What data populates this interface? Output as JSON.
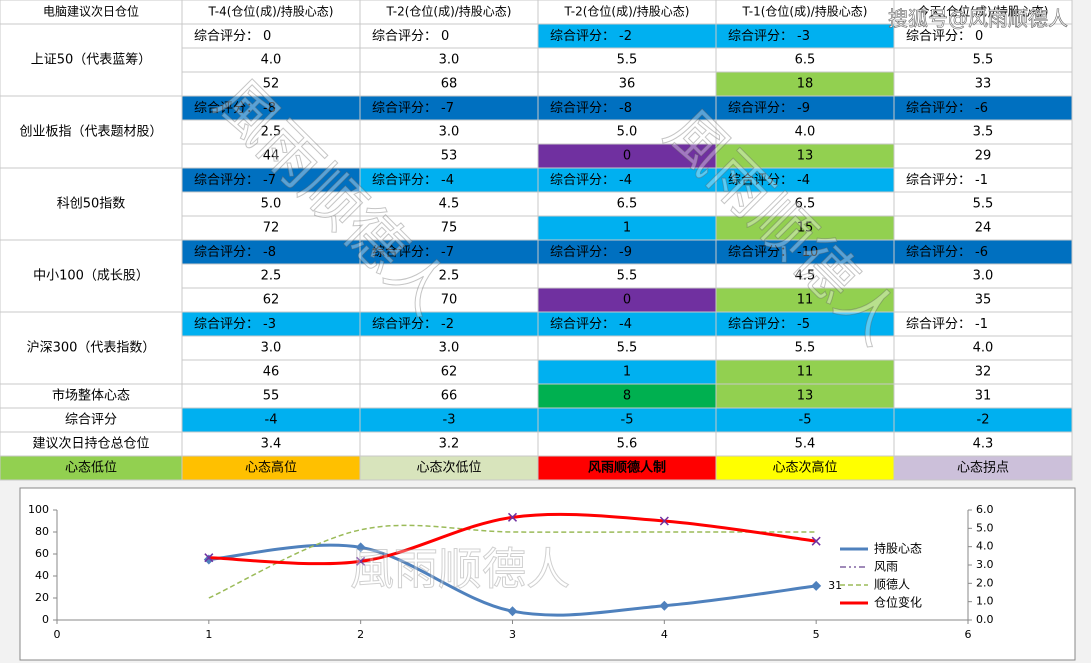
{
  "watermark_top": "搜狐号@风雨顺德人",
  "watermark": "風雨顺德人",
  "score_prefix": "综合评分：",
  "table": {
    "header": [
      "电脑建议次日仓位",
      "T-4(仓位(成)/持股心态)",
      "T-2(仓位(成)/持股心态)",
      "T-2(仓位(成)/持股心态)",
      "T-1(仓位(成)/持股心态)",
      "今天(仓位(成)/持股心态)"
    ],
    "groups": [
      {
        "name": "上证50（代表蓝筹）",
        "scores": [
          0,
          0,
          -2,
          -3,
          0
        ],
        "score_fills": [
          "#ffffff",
          "#ffffff",
          "#00b0f0",
          "#00b0f0",
          "#ffffff"
        ],
        "positions": [
          "4.0",
          "3.0",
          "5.5",
          "6.5",
          "5.5"
        ],
        "moods": [
          52,
          68,
          36,
          18,
          33
        ],
        "mood_fills": [
          "#ffffff",
          "#ffffff",
          "#ffffff",
          "#92d050",
          "#ffffff"
        ]
      },
      {
        "name": "创业板指（代表题材股）",
        "scores": [
          -8,
          -7,
          -8,
          -9,
          -6
        ],
        "score_fills": [
          "#0070c0",
          "#0070c0",
          "#0070c0",
          "#0070c0",
          "#0070c0"
        ],
        "positions": [
          "2.5",
          "3.0",
          "5.0",
          "4.0",
          "3.5"
        ],
        "moods": [
          44,
          53,
          0,
          13,
          29
        ],
        "mood_fills": [
          "#ffffff",
          "#ffffff",
          "#7030a0",
          "#92d050",
          "#ffffff"
        ]
      },
      {
        "name": "科创50指数",
        "scores": [
          -7,
          -4,
          -4,
          -4,
          -1
        ],
        "score_fills": [
          "#0070c0",
          "#00b0f0",
          "#00b0f0",
          "#00b0f0",
          "#ffffff"
        ],
        "positions": [
          "5.0",
          "4.5",
          "6.5",
          "6.5",
          "5.5"
        ],
        "moods": [
          72,
          75,
          1,
          15,
          24
        ],
        "mood_fills": [
          "#ffffff",
          "#ffffff",
          "#00b0f0",
          "#92d050",
          "#ffffff"
        ]
      },
      {
        "name": "中小100（成长股）",
        "scores": [
          -8,
          -7,
          -9,
          -10,
          -6
        ],
        "score_fills": [
          "#0070c0",
          "#0070c0",
          "#0070c0",
          "#0070c0",
          "#0070c0"
        ],
        "positions": [
          "2.5",
          "2.5",
          "5.5",
          "4.5",
          "3.0"
        ],
        "moods": [
          62,
          70,
          0,
          11,
          35
        ],
        "mood_fills": [
          "#ffffff",
          "#ffffff",
          "#7030a0",
          "#92d050",
          "#ffffff"
        ]
      },
      {
        "name": "沪深300（代表指数）",
        "scores": [
          -3,
          -2,
          -4,
          -5,
          -1
        ],
        "score_fills": [
          "#00b0f0",
          "#00b0f0",
          "#00b0f0",
          "#00b0f0",
          "#ffffff"
        ],
        "positions": [
          "3.0",
          "3.0",
          "5.5",
          "5.5",
          "4.0"
        ],
        "moods": [
          46,
          62,
          1,
          11,
          32
        ],
        "mood_fills": [
          "#ffffff",
          "#ffffff",
          "#00b0f0",
          "#92d050",
          "#ffffff"
        ]
      }
    ],
    "summary": [
      {
        "name": "市场整体心态",
        "values": [
          55,
          66,
          8,
          13,
          31
        ],
        "fills": [
          "#ffffff",
          "#ffffff",
          "#00b050",
          "#92d050",
          "#ffffff"
        ]
      },
      {
        "name": "综合评分",
        "values": [
          -4,
          -3,
          -5,
          -5,
          -2
        ],
        "fills": [
          "#00b0f0",
          "#00b0f0",
          "#00b0f0",
          "#00b0f0",
          "#00b0f0"
        ]
      },
      {
        "name": "建议次日持仓总仓位",
        "values": [
          3.4,
          3.2,
          5.6,
          5.4,
          4.3
        ],
        "fills": [
          "#ffffff",
          "#ffffff",
          "#ffffff",
          "#ffffff",
          "#ffffff"
        ]
      }
    ],
    "legend": [
      {
        "label": "心态低位",
        "color": "#92d050"
      },
      {
        "label": "心态高位",
        "color": "#ffc000"
      },
      {
        "label": "心态次低位",
        "color": "#d8e4bc"
      },
      {
        "label": "风雨顺德人制",
        "color": "#ff0000"
      },
      {
        "label": "心态次高位",
        "color": "#ffff00"
      },
      {
        "label": "心态拐点",
        "color": "#ccc0da"
      }
    ]
  },
  "chart_data": {
    "type": "line",
    "x": [
      1,
      2,
      3,
      4,
      5
    ],
    "xlim": [
      0,
      6
    ],
    "xticks": [
      0,
      1,
      2,
      3,
      4,
      5,
      6
    ],
    "ylim": [
      0,
      100
    ],
    "yticks": [
      0,
      20,
      40,
      60,
      80,
      100
    ],
    "y2lim": [
      0,
      6
    ],
    "y2ticks": [
      {
        "value": 0,
        "label": "0.0"
      },
      {
        "value": 1,
        "label": "1.0"
      },
      {
        "value": 2,
        "label": "2.0"
      },
      {
        "value": 3,
        "label": "3.0"
      },
      {
        "value": 4,
        "label": "4.0"
      },
      {
        "value": 5,
        "label": "5.0"
      },
      {
        "value": 6,
        "label": "6.0"
      }
    ],
    "legend": "right",
    "series": [
      {
        "name": "持股心态",
        "color": "#4f81bd",
        "values": [
          55,
          66,
          8,
          13,
          31
        ]
      },
      {
        "name": "风雨",
        "color": "#8064a2",
        "values": [
          null,
          null,
          null,
          null,
          null
        ]
      },
      {
        "name": "顺德人",
        "color": "#9bbb59",
        "values": [
          20,
          82,
          80,
          80,
          80
        ]
      },
      {
        "name": "仓位变化",
        "color": "#ff0000",
        "axis": "y2",
        "values": [
          3.4,
          3.2,
          5.6,
          5.4,
          4.3
        ]
      }
    ]
  }
}
